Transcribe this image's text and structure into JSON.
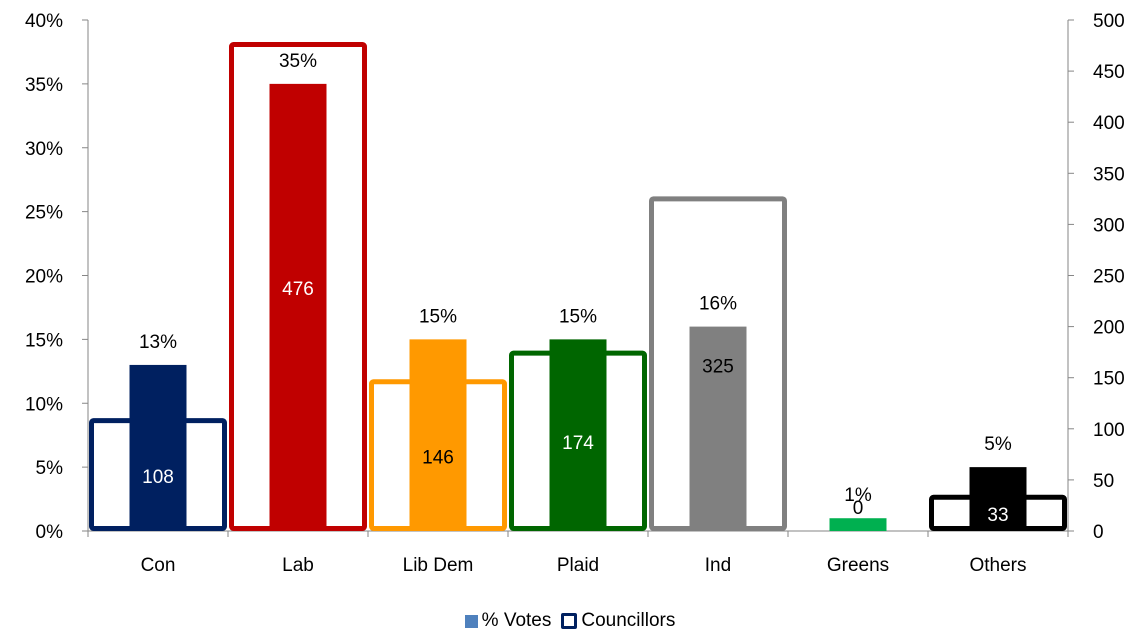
{
  "chart_data": {
    "type": "bar",
    "categories": [
      "Con",
      "Lab",
      "Lib Dem",
      "Plaid",
      "Ind",
      "Greens",
      "Others"
    ],
    "colors": [
      "#002060",
      "#c00000",
      "#ff9900",
      "#006600",
      "#808080",
      "#00b050",
      "#000000"
    ],
    "series": [
      {
        "name": "% Votes",
        "axis": "left",
        "values": [
          13,
          35,
          15,
          15,
          16,
          1,
          5
        ],
        "labels": [
          "13%",
          "35%",
          "15%",
          "15%",
          "16%",
          "1%",
          "5%"
        ]
      },
      {
        "name": "Councillors",
        "axis": "right",
        "style": "outlined",
        "values": [
          108,
          476,
          146,
          174,
          325,
          0,
          33
        ],
        "labels": [
          "108",
          "476",
          "146",
          "174",
          "325",
          "0",
          "33"
        ]
      }
    ],
    "left_axis": {
      "ylim": [
        0,
        40
      ],
      "ticks": [
        "0%",
        "5%",
        "10%",
        "15%",
        "20%",
        "25%",
        "30%",
        "35%",
        "40%"
      ]
    },
    "right_axis": {
      "ylim": [
        0,
        500
      ],
      "ticks": [
        "0",
        "50",
        "100",
        "150",
        "200",
        "250",
        "300",
        "350",
        "400",
        "450",
        "500"
      ]
    },
    "legend_position": "bottom",
    "grid": false
  },
  "legend": {
    "votes_label": "% Votes",
    "councillors_label": "Councillors"
  }
}
